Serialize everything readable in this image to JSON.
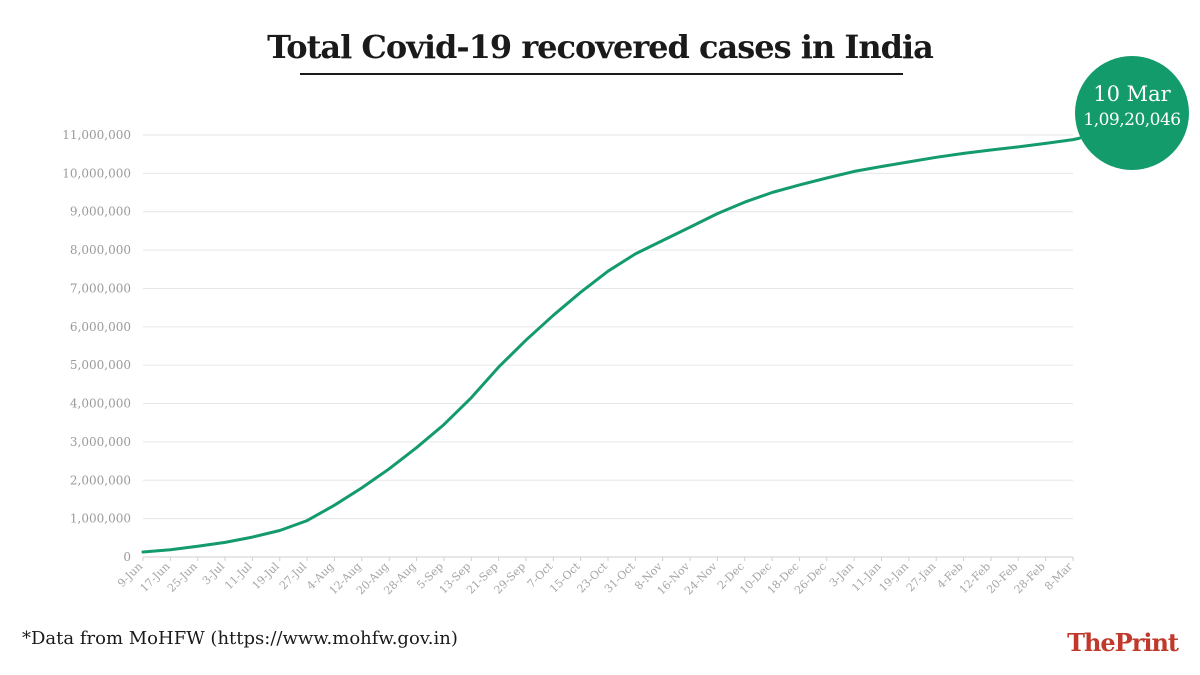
{
  "title": "Total Covid-19 recovered cases in India",
  "callout": {
    "date": "10 Mar",
    "value": "1,09,20,046"
  },
  "source": "*Data from MoHFW (https://www.mohfw.gov.in)",
  "brand": "ThePrint",
  "colors": {
    "line": "#149b6b",
    "callout": "#149b6b",
    "brand": "#c0392b",
    "grid": "#e6e6e6",
    "axis_text": "#9a9a9a"
  },
  "chart_data": {
    "type": "line",
    "title": "Total Covid-19 recovered cases in India",
    "xlabel": "",
    "ylabel": "",
    "ylim": [
      0,
      11000000
    ],
    "yticks": [
      0,
      1000000,
      2000000,
      3000000,
      4000000,
      5000000,
      6000000,
      7000000,
      8000000,
      9000000,
      10000000,
      11000000
    ],
    "ytick_labels": [
      "0",
      "1,000,000",
      "2,000,000",
      "3,000,000",
      "4,000,000",
      "5,000,000",
      "6,000,000",
      "7,000,000",
      "8,000,000",
      "9,000,000",
      "10,000,000",
      "11,000,000"
    ],
    "xtick_labels": [
      "9-Jun",
      "17-Jun",
      "25-Jun",
      "3-Jul",
      "11-Jul",
      "19-Jul",
      "27-Jul",
      "4-Aug",
      "12-Aug",
      "20-Aug",
      "28-Aug",
      "5-Sep",
      "13-Sep",
      "21-Sep",
      "29-Sep",
      "7-Oct",
      "15-Oct",
      "23-Oct",
      "31-Oct",
      "8-Nov",
      "16-Nov",
      "24-Nov",
      "2-Dec",
      "10-Dec",
      "18-Dec",
      "26-Dec",
      "3-Jan",
      "11-Jan",
      "19-Jan",
      "27-Jan",
      "4-Feb",
      "12-Feb",
      "20-Feb",
      "28-Feb",
      "8-Mar"
    ],
    "grid": true,
    "legend": "none",
    "series": [
      {
        "x": [
          "9-Jun",
          "17-Jun",
          "25-Jun",
          "3-Jul",
          "11-Jul",
          "19-Jul",
          "27-Jul",
          "4-Aug",
          "12-Aug",
          "20-Aug",
          "28-Aug",
          "5-Sep",
          "13-Sep",
          "21-Sep",
          "29-Sep",
          "7-Oct",
          "15-Oct",
          "23-Oct",
          "31-Oct",
          "8-Nov",
          "16-Nov",
          "24-Nov",
          "2-Dec",
          "10-Dec",
          "18-Dec",
          "26-Dec",
          "3-Jan",
          "11-Jan",
          "19-Jan",
          "27-Jan",
          "4-Feb",
          "12-Feb",
          "20-Feb",
          "28-Feb",
          "8-Mar",
          "10-Mar"
        ],
        "values": [
          130000,
          190000,
          280000,
          380000,
          520000,
          690000,
          950000,
          1350000,
          1800000,
          2300000,
          2850000,
          3450000,
          4150000,
          4950000,
          5650000,
          6300000,
          6900000,
          7450000,
          7900000,
          8250000,
          8600000,
          8950000,
          9250000,
          9500000,
          9700000,
          9880000,
          10050000,
          10180000,
          10300000,
          10420000,
          10520000,
          10610000,
          10690000,
          10780000,
          10880000,
          10920046
        ]
      }
    ]
  }
}
